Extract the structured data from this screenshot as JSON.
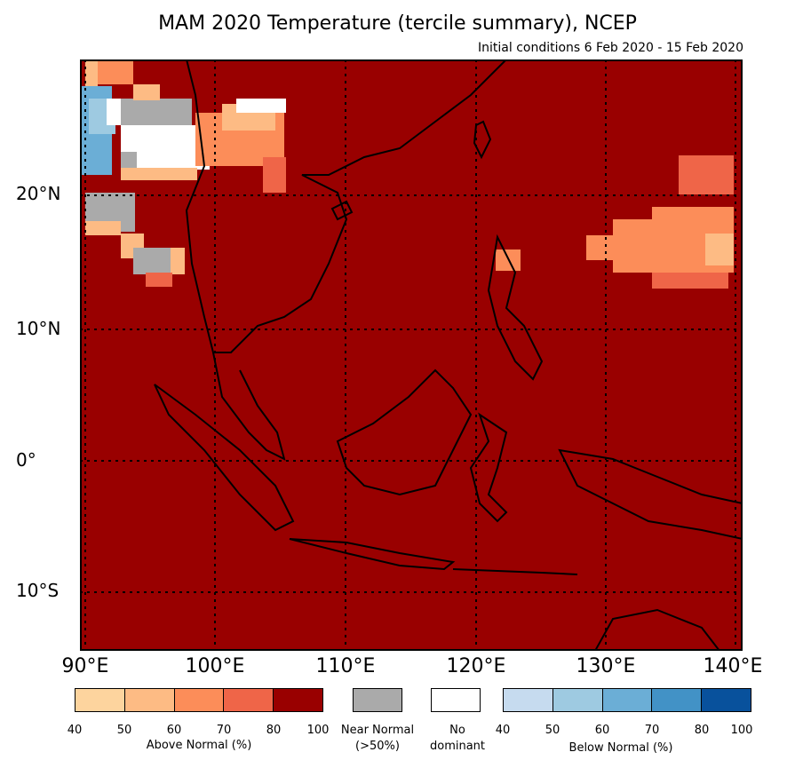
{
  "title": "MAM 2020 Temperature (tercile summary), NCEP",
  "subtitle": "Initial conditions 6 Feb 2020 - 15 Feb 2020",
  "map": {
    "lon_range": [
      90,
      141
    ],
    "lat_range": [
      -14.5,
      31
    ],
    "background_color": "#990000",
    "lat_labels": [
      "20°N",
      "10°N",
      "0°",
      "10°S"
    ],
    "lon_labels": [
      "90°E",
      "100°E",
      "110°E",
      "120°E",
      "130°E",
      "140°E"
    ]
  },
  "legend": {
    "above": {
      "colors": [
        "#fdd49e",
        "#fdbb84",
        "#fc8d59",
        "#ef6548",
        "#990000"
      ],
      "ticks": [
        "40",
        "50",
        "60",
        "70",
        "80",
        "100"
      ],
      "label": "Above Normal (%)"
    },
    "near": {
      "color": "#aaaaaa",
      "label_line1": "Near Normal",
      "label_line2": "(>50%)"
    },
    "none": {
      "color": "#ffffff",
      "label_line1": "No",
      "label_line2": "dominant"
    },
    "below": {
      "colors": [
        "#c6dbef",
        "#9ecae1",
        "#6baed6",
        "#4292c6",
        "#08519c"
      ],
      "ticks": [
        "40",
        "50",
        "60",
        "70",
        "80",
        "100"
      ],
      "label": "Below Normal (%)"
    }
  }
}
